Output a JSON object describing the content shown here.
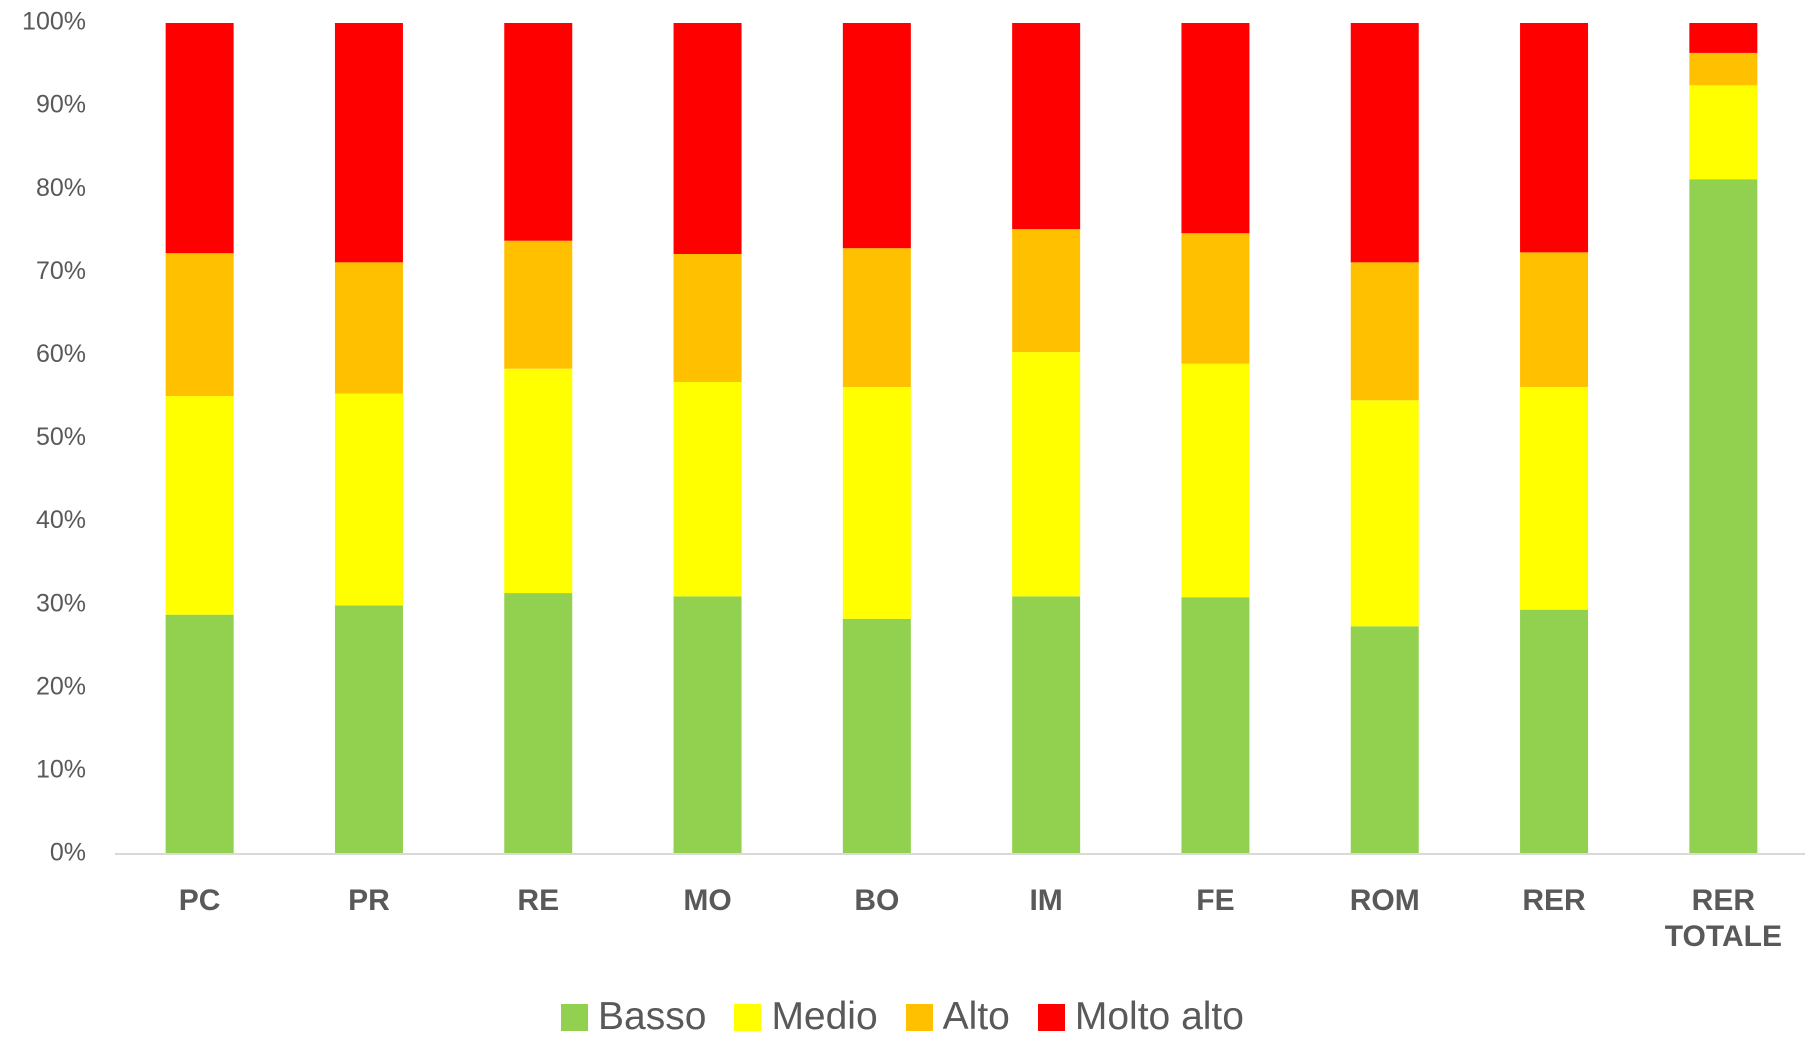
{
  "chart_data": {
    "type": "stacked_bar",
    "categories": [
      "PC",
      "PR",
      "RE",
      "MO",
      "BO",
      "IM",
      "FE",
      "ROM",
      "RER",
      "RER TOTALE"
    ],
    "series": [
      {
        "name": "Basso",
        "color": "#92d050",
        "values": [
          28.8,
          29.9,
          31.4,
          31.0,
          28.3,
          31.0,
          30.9,
          27.4,
          29.4,
          81.2
        ]
      },
      {
        "name": "Medio",
        "color": "#ffff00",
        "values": [
          26.3,
          25.5,
          27.0,
          25.8,
          27.9,
          29.4,
          28.1,
          27.2,
          26.8,
          11.3
        ]
      },
      {
        "name": "Alto",
        "color": "#ffc000",
        "values": [
          17.2,
          15.8,
          15.4,
          15.4,
          16.7,
          14.8,
          15.7,
          16.6,
          16.2,
          3.9
        ]
      },
      {
        "name": "Molto alto",
        "color": "#ff0000",
        "values": [
          27.7,
          28.8,
          26.2,
          27.8,
          27.1,
          24.8,
          25.3,
          28.8,
          27.6,
          3.6
        ]
      }
    ],
    "ylim": [
      0,
      100
    ],
    "yticks": [
      {
        "value": 0,
        "label": "0%"
      },
      {
        "value": 10,
        "label": "10%"
      },
      {
        "value": 20,
        "label": "20%"
      },
      {
        "value": 30,
        "label": "30%"
      },
      {
        "value": 40,
        "label": "40%"
      },
      {
        "value": 50,
        "label": "50%"
      },
      {
        "value": 60,
        "label": "60%"
      },
      {
        "value": 70,
        "label": "70%"
      },
      {
        "value": 80,
        "label": "80%"
      },
      {
        "value": 90,
        "label": "90%"
      },
      {
        "value": 100,
        "label": "100%"
      }
    ],
    "grid": false,
    "legend": "bottom"
  }
}
